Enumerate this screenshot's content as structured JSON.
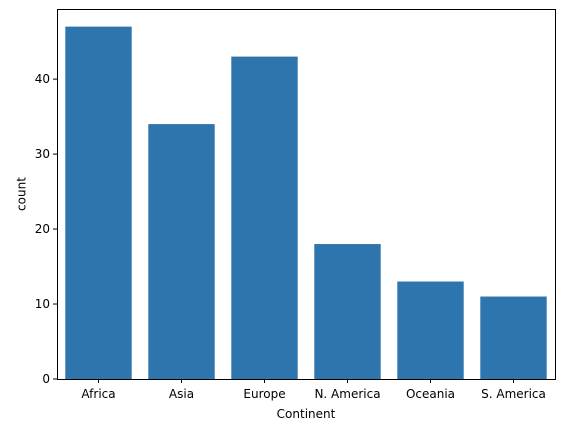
{
  "chart_data": {
    "type": "bar",
    "title": "",
    "xlabel": "Continent",
    "ylabel": "count",
    "categories": [
      "Africa",
      "Asia",
      "Europe",
      "N. America",
      "Oceania",
      "S. America"
    ],
    "values": [
      47,
      34,
      43,
      18,
      13,
      11
    ],
    "ylim": [
      0,
      49.35
    ],
    "yticks": [
      0,
      10,
      20,
      30,
      40
    ],
    "grid": false,
    "colors": {
      "bar": "#2e75ad",
      "axis": "#000000",
      "background": "#ffffff"
    }
  }
}
